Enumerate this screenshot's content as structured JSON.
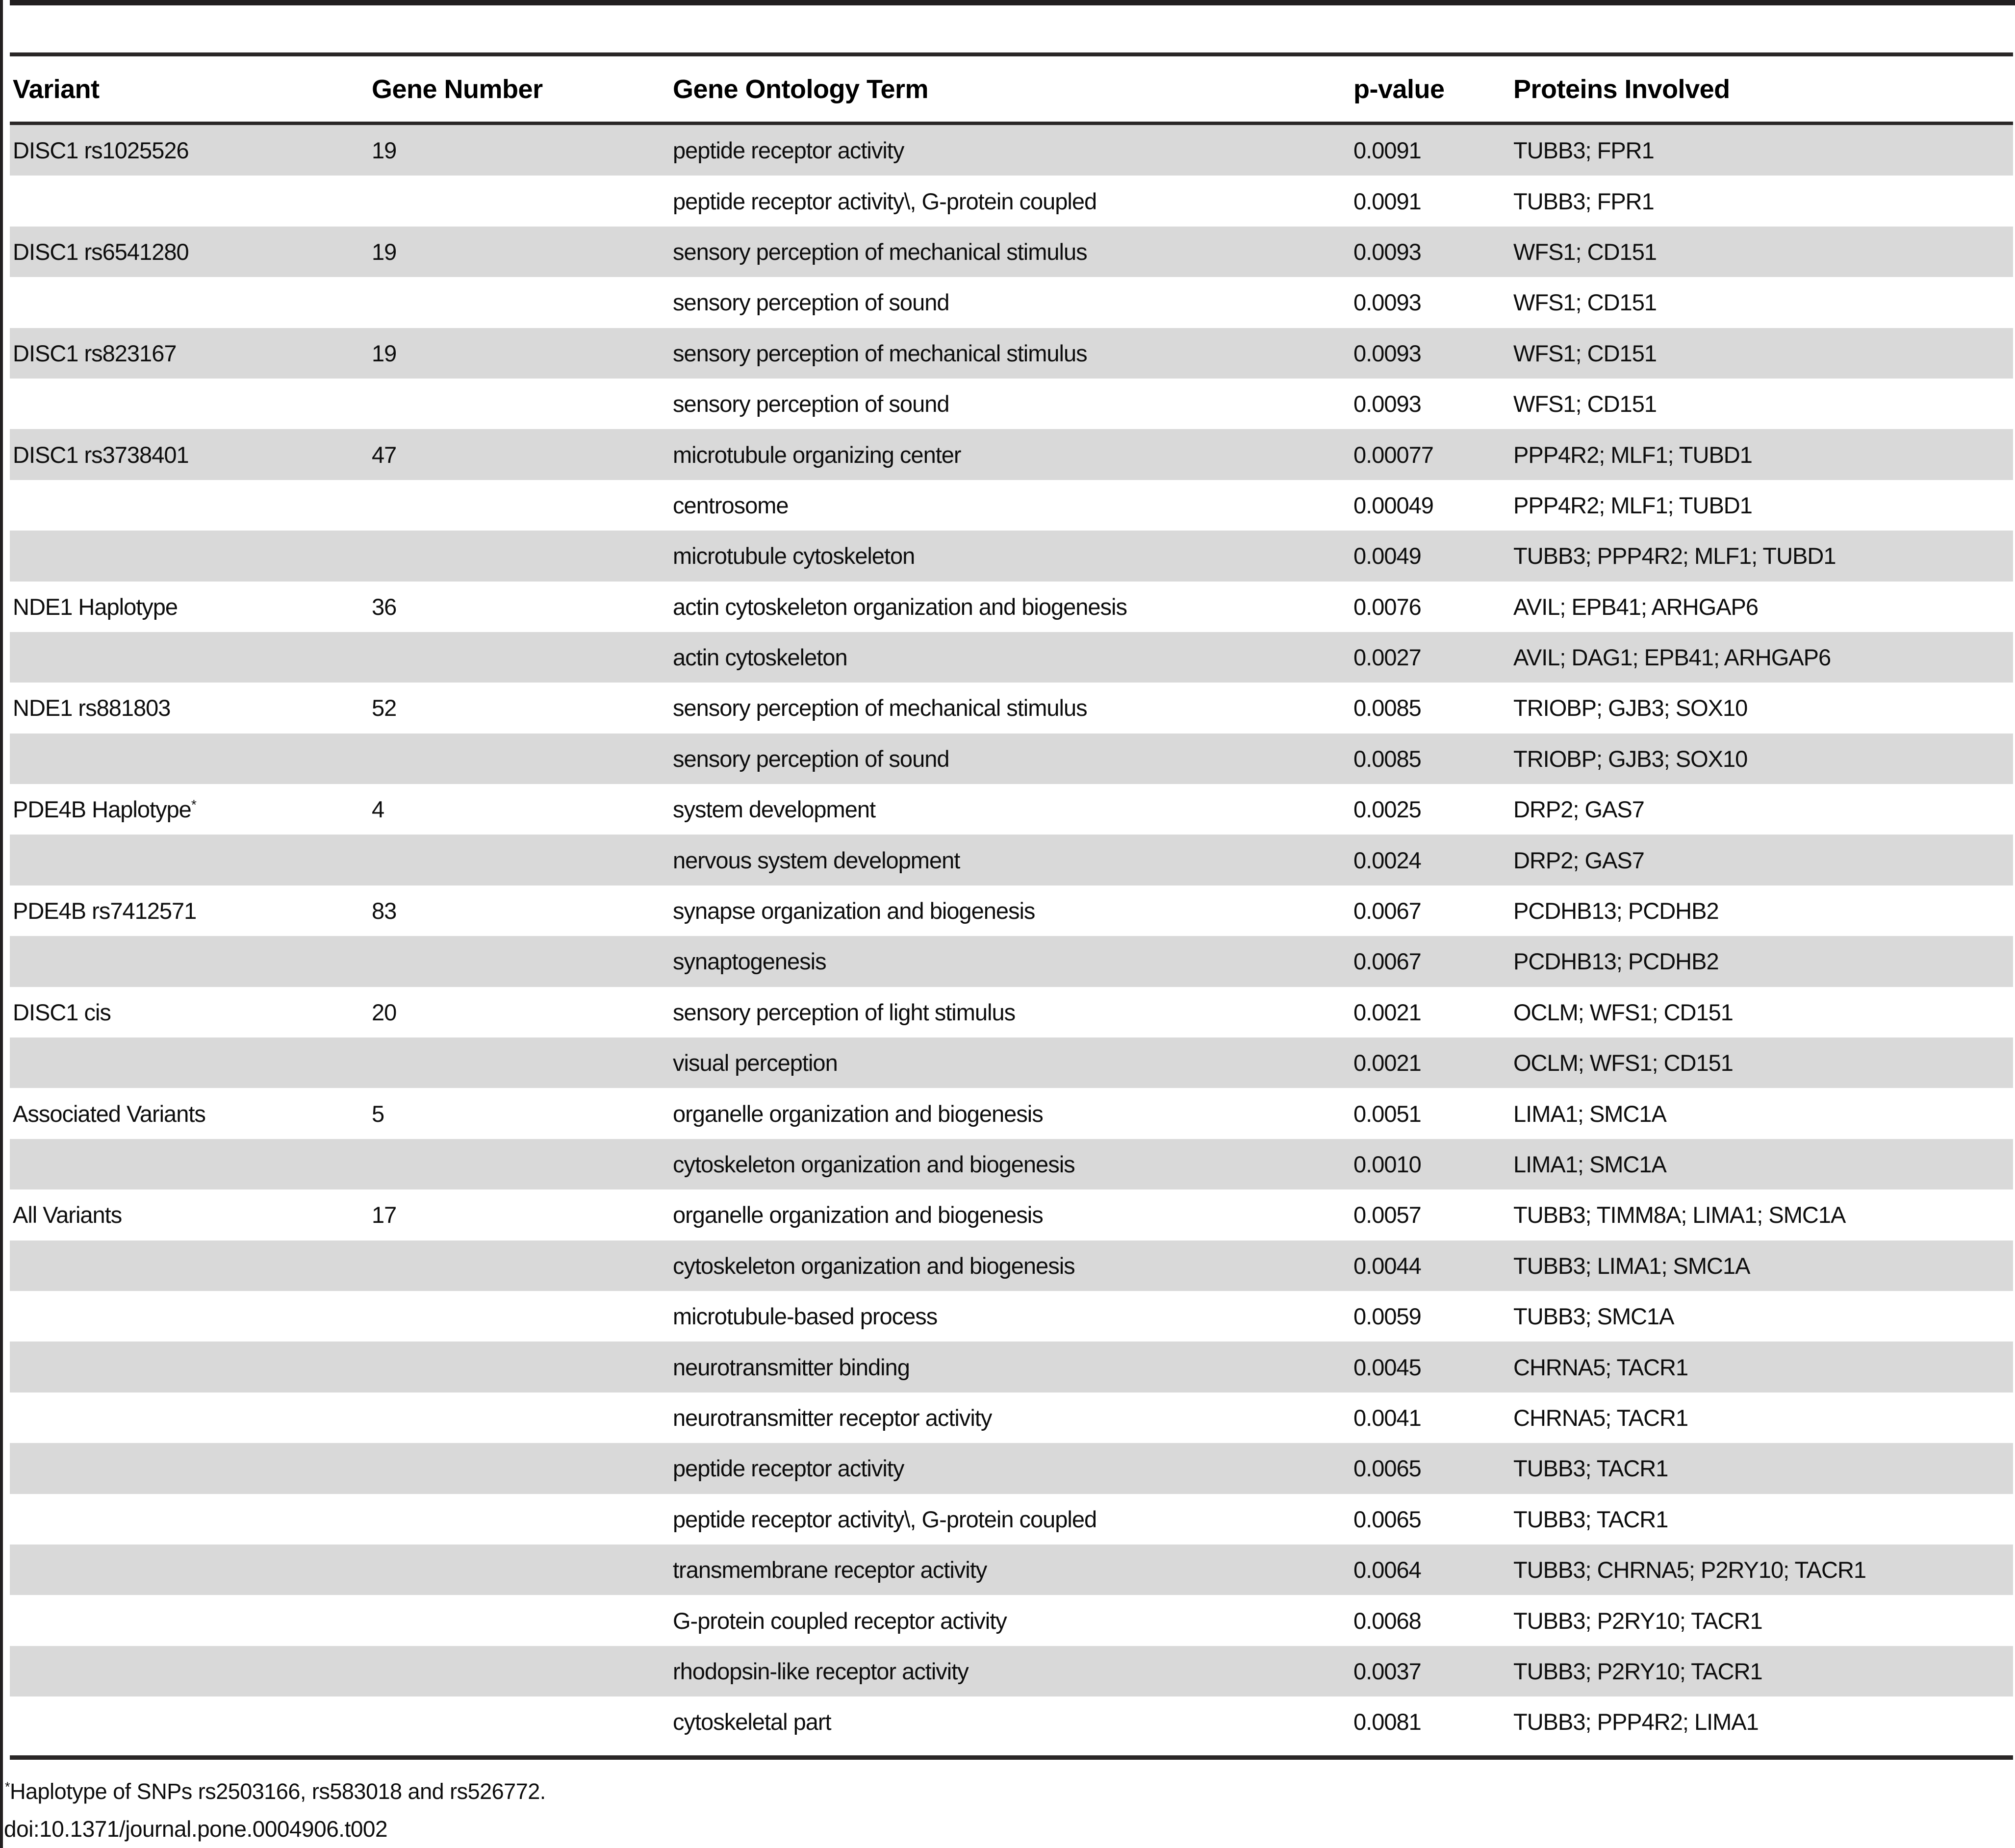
{
  "table": {
    "columns": [
      "Variant",
      "Gene Number",
      "Gene Ontology Term",
      "p-value",
      "Proteins Involved"
    ],
    "rows": [
      {
        "variant": "DISC1 rs1025526",
        "gene_number": "19",
        "go_term": "peptide receptor activity",
        "p_value": "0.0091",
        "proteins": "TUBB3; FPR1"
      },
      {
        "variant": "",
        "gene_number": "",
        "go_term": "peptide receptor activity\\, G-protein coupled",
        "p_value": "0.0091",
        "proteins": "TUBB3; FPR1"
      },
      {
        "variant": "DISC1 rs6541280",
        "gene_number": "19",
        "go_term": "sensory perception of mechanical stimulus",
        "p_value": "0.0093",
        "proteins": "WFS1; CD151"
      },
      {
        "variant": "",
        "gene_number": "",
        "go_term": "sensory perception of sound",
        "p_value": "0.0093",
        "proteins": "WFS1; CD151"
      },
      {
        "variant": "DISC1 rs823167",
        "gene_number": "19",
        "go_term": "sensory perception of mechanical stimulus",
        "p_value": "0.0093",
        "proteins": "WFS1; CD151"
      },
      {
        "variant": "",
        "gene_number": "",
        "go_term": "sensory perception of sound",
        "p_value": "0.0093",
        "proteins": "WFS1; CD151"
      },
      {
        "variant": "DISC1 rs3738401",
        "gene_number": "47",
        "go_term": "microtubule organizing center",
        "p_value": "0.00077",
        "proteins": "PPP4R2; MLF1; TUBD1"
      },
      {
        "variant": "",
        "gene_number": "",
        "go_term": "centrosome",
        "p_value": "0.00049",
        "proteins": "PPP4R2; MLF1; TUBD1"
      },
      {
        "variant": "",
        "gene_number": "",
        "go_term": "microtubule cytoskeleton",
        "p_value": "0.0049",
        "proteins": "TUBB3; PPP4R2; MLF1; TUBD1"
      },
      {
        "variant": "NDE1 Haplotype",
        "gene_number": "36",
        "go_term": "actin cytoskeleton organization and biogenesis",
        "p_value": "0.0076",
        "proteins": "AVIL; EPB41; ARHGAP6"
      },
      {
        "variant": "",
        "gene_number": "",
        "go_term": "actin cytoskeleton",
        "p_value": "0.0027",
        "proteins": "AVIL; DAG1; EPB41; ARHGAP6"
      },
      {
        "variant": "NDE1 rs881803",
        "gene_number": "52",
        "go_term": "sensory perception of mechanical stimulus",
        "p_value": "0.0085",
        "proteins": "TRIOBP; GJB3; SOX10"
      },
      {
        "variant": "",
        "gene_number": "",
        "go_term": "sensory perception of sound",
        "p_value": "0.0085",
        "proteins": "TRIOBP; GJB3; SOX10"
      },
      {
        "variant": "PDE4B Haplotype*",
        "gene_number": "4",
        "go_term": "system development",
        "p_value": "0.0025",
        "proteins": "DRP2; GAS7"
      },
      {
        "variant": "",
        "gene_number": "",
        "go_term": "nervous system development",
        "p_value": "0.0024",
        "proteins": "DRP2; GAS7"
      },
      {
        "variant": "PDE4B rs7412571",
        "gene_number": "83",
        "go_term": "synapse organization and biogenesis",
        "p_value": "0.0067",
        "proteins": "PCDHB13; PCDHB2"
      },
      {
        "variant": "",
        "gene_number": "",
        "go_term": "synaptogenesis",
        "p_value": "0.0067",
        "proteins": "PCDHB13; PCDHB2"
      },
      {
        "variant": "DISC1 cis",
        "gene_number": "20",
        "go_term": "sensory perception of light stimulus",
        "p_value": "0.0021",
        "proteins": "OCLM; WFS1; CD151"
      },
      {
        "variant": "",
        "gene_number": "",
        "go_term": "visual perception",
        "p_value": "0.0021",
        "proteins": "OCLM; WFS1; CD151"
      },
      {
        "variant": "Associated Variants",
        "gene_number": "5",
        "go_term": "organelle organization and biogenesis",
        "p_value": "0.0051",
        "proteins": "LIMA1; SMC1A"
      },
      {
        "variant": "",
        "gene_number": "",
        "go_term": "cytoskeleton organization and biogenesis",
        "p_value": "0.0010",
        "proteins": "LIMA1; SMC1A"
      },
      {
        "variant": "All Variants",
        "gene_number": "17",
        "go_term": "organelle organization and biogenesis",
        "p_value": "0.0057",
        "proteins": "TUBB3; TIMM8A; LIMA1; SMC1A"
      },
      {
        "variant": "",
        "gene_number": "",
        "go_term": "cytoskeleton organization and biogenesis",
        "p_value": "0.0044",
        "proteins": "TUBB3; LIMA1; SMC1A"
      },
      {
        "variant": "",
        "gene_number": "",
        "go_term": "microtubule-based process",
        "p_value": "0.0059",
        "proteins": "TUBB3; SMC1A"
      },
      {
        "variant": "",
        "gene_number": "",
        "go_term": "neurotransmitter binding",
        "p_value": "0.0045",
        "proteins": "CHRNA5; TACR1"
      },
      {
        "variant": "",
        "gene_number": "",
        "go_term": "neurotransmitter receptor activity",
        "p_value": "0.0041",
        "proteins": "CHRNA5; TACR1"
      },
      {
        "variant": "",
        "gene_number": "",
        "go_term": "peptide receptor activity",
        "p_value": "0.0065",
        "proteins": "TUBB3; TACR1"
      },
      {
        "variant": "",
        "gene_number": "",
        "go_term": "peptide receptor activity\\, G-protein coupled",
        "p_value": "0.0065",
        "proteins": "TUBB3; TACR1"
      },
      {
        "variant": "",
        "gene_number": "",
        "go_term": "transmembrane receptor activity",
        "p_value": "0.0064",
        "proteins": "TUBB3; CHRNA5; P2RY10; TACR1"
      },
      {
        "variant": "",
        "gene_number": "",
        "go_term": "G-protein coupled receptor activity",
        "p_value": "0.0068",
        "proteins": "TUBB3; P2RY10; TACR1"
      },
      {
        "variant": "",
        "gene_number": "",
        "go_term": "rhodopsin-like receptor activity",
        "p_value": "0.0037",
        "proteins": "TUBB3; P2RY10; TACR1"
      },
      {
        "variant": "",
        "gene_number": "",
        "go_term": "cytoskeletal part",
        "p_value": "0.0081",
        "proteins": "TUBB3; PPP4R2; LIMA1"
      }
    ]
  },
  "footnote": {
    "marker": "*",
    "text": "Haplotype of SNPs rs2503166, rs583018 and rs526772.",
    "doi": "doi:10.1371/journal.pone.0004906.t002"
  },
  "colors": {
    "shaded_row": "#d9d9d9",
    "bar": "#221f20",
    "text": "#000000"
  }
}
